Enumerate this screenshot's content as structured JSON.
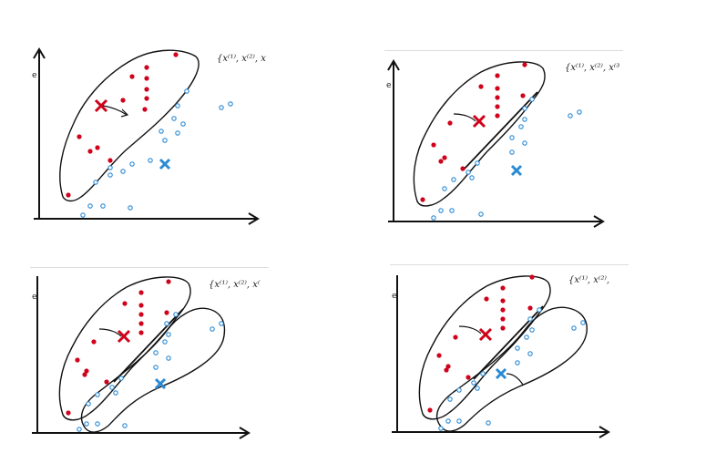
{
  "colors": {
    "red_cluster": "#d0021b",
    "blue_cluster": "#2a8ad4",
    "stroke": "#111111",
    "panel_shadow": "#dcdcdc"
  },
  "panels": [
    {
      "id": "panel-1",
      "set_label": "{x⁽¹⁾, x⁽²⁾, x",
      "axis_mark": "e"
    },
    {
      "id": "panel-2",
      "set_label": "{x⁽¹⁾, x⁽²⁾, x⁽³",
      "axis_mark": "e"
    },
    {
      "id": "panel-3",
      "set_label": "{x⁽¹⁾, x⁽²⁾, x⁽",
      "axis_mark": "e"
    },
    {
      "id": "panel-4",
      "set_label": "{x⁽¹⁾, x⁽²⁾,",
      "axis_mark": "e"
    }
  ],
  "icons": {
    "red_centroid": "red-x-centroid-icon",
    "blue_centroid": "blue-x-centroid-icon",
    "move_arrow": "curved-arrow-icon"
  }
}
